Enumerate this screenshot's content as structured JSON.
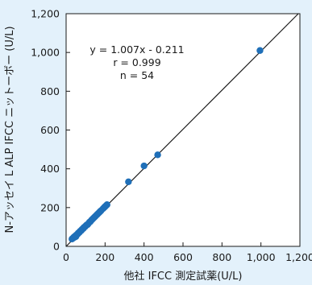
{
  "chart_data": {
    "type": "scatter",
    "xlabel": "他社 IFCC 測定試薬(U/L)",
    "ylabel": "N-アッセイ L ALP IFCC ニットーボー (U/L)",
    "xlim": [
      0,
      1200
    ],
    "ylim": [
      0,
      1200
    ],
    "x_ticks": [
      "0",
      "200",
      "400",
      "600",
      "800",
      "1,000",
      "1,200"
    ],
    "y_ticks": [
      "0",
      "200",
      "400",
      "600",
      "800",
      "1,000",
      "1,200"
    ],
    "grid": false,
    "point_color": "#1f6fb8",
    "line_color": "#1a1a1a",
    "regression": {
      "slope": 1.007,
      "intercept": -0.211
    },
    "annotations": [
      "y = 1.007x - 0.211",
      "r = 0.999",
      "n = 54"
    ],
    "points": [
      [
        30,
        38
      ],
      [
        35,
        42
      ],
      [
        38,
        45
      ],
      [
        40,
        48
      ],
      [
        42,
        46
      ],
      [
        45,
        52
      ],
      [
        48,
        50
      ],
      [
        50,
        55
      ],
      [
        52,
        58
      ],
      [
        55,
        60
      ],
      [
        58,
        62
      ],
      [
        60,
        65
      ],
      [
        62,
        68
      ],
      [
        65,
        70
      ],
      [
        68,
        72
      ],
      [
        70,
        75
      ],
      [
        72,
        78
      ],
      [
        75,
        80
      ],
      [
        78,
        82
      ],
      [
        80,
        85
      ],
      [
        82,
        88
      ],
      [
        85,
        90
      ],
      [
        88,
        92
      ],
      [
        90,
        95
      ],
      [
        92,
        98
      ],
      [
        95,
        100
      ],
      [
        98,
        102
      ],
      [
        100,
        105
      ],
      [
        105,
        110
      ],
      [
        110,
        112
      ],
      [
        115,
        118
      ],
      [
        120,
        125
      ],
      [
        125,
        128
      ],
      [
        130,
        135
      ],
      [
        135,
        140
      ],
      [
        140,
        145
      ],
      [
        145,
        150
      ],
      [
        150,
        155
      ],
      [
        155,
        160
      ],
      [
        160,
        165
      ],
      [
        165,
        170
      ],
      [
        170,
        175
      ],
      [
        175,
        180
      ],
      [
        180,
        185
      ],
      [
        190,
        195
      ],
      [
        195,
        200
      ],
      [
        200,
        205
      ],
      [
        205,
        210
      ],
      [
        210,
        215
      ],
      [
        320,
        333
      ],
      [
        400,
        415
      ],
      [
        470,
        472
      ],
      [
        995,
        1010
      ],
      [
        50,
        50
      ]
    ]
  }
}
